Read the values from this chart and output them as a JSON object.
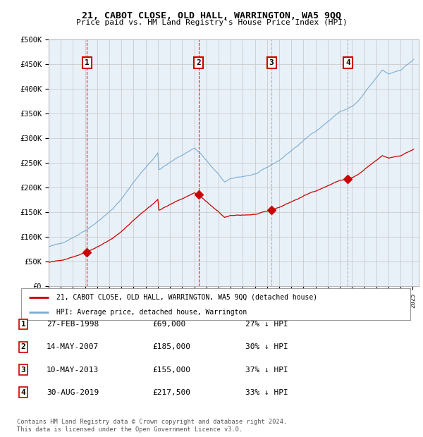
{
  "title": "21, CABOT CLOSE, OLD HALL, WARRINGTON, WA5 9QQ",
  "subtitle": "Price paid vs. HM Land Registry's House Price Index (HPI)",
  "background_color": "#e8f0f8",
  "plot_bg_color": "#e8f0f8",
  "ylim": [
    0,
    500000
  ],
  "yticks": [
    0,
    50000,
    100000,
    150000,
    200000,
    250000,
    300000,
    350000,
    400000,
    450000,
    500000
  ],
  "ytick_labels": [
    "£0",
    "£50K",
    "£100K",
    "£150K",
    "£200K",
    "£250K",
    "£300K",
    "£350K",
    "£400K",
    "£450K",
    "£500K"
  ],
  "xlim_start": 1995.0,
  "xlim_end": 2025.5,
  "sale_dates": [
    1998.15,
    2007.37,
    2013.36,
    2019.66
  ],
  "sale_prices": [
    69000,
    185000,
    155000,
    217500
  ],
  "sale_labels": [
    "1",
    "2",
    "3",
    "4"
  ],
  "sale_vline_colors": [
    "#cc0000",
    "#cc0000",
    "#aaaaaa",
    "#aaaaaa"
  ],
  "sale_info": [
    [
      "1",
      "27-FEB-1998",
      "£69,000",
      "27% ↓ HPI"
    ],
    [
      "2",
      "14-MAY-2007",
      "£185,000",
      "30% ↓ HPI"
    ],
    [
      "3",
      "10-MAY-2013",
      "£155,000",
      "37% ↓ HPI"
    ],
    [
      "4",
      "30-AUG-2019",
      "£217,500",
      "33% ↓ HPI"
    ]
  ],
  "legend_line1": "21, CABOT CLOSE, OLD HALL, WARRINGTON, WA5 9QQ (detached house)",
  "legend_line2": "HPI: Average price, detached house, Warrington",
  "footer1": "Contains HM Land Registry data © Crown copyright and database right 2024.",
  "footer2": "This data is licensed under the Open Government Licence v3.0.",
  "red_color": "#cc0000",
  "blue_color": "#7aadd4"
}
